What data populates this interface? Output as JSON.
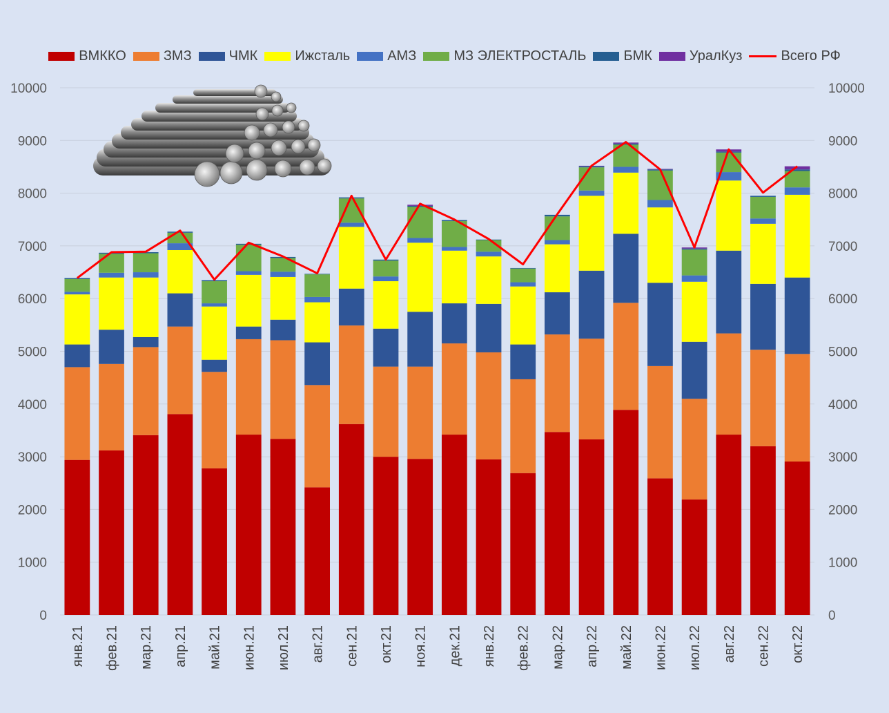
{
  "chart_data": {
    "type": "bar",
    "stacked": true,
    "title": "",
    "xlabel": "",
    "ylabel": "",
    "ylim": [
      0,
      10000
    ],
    "y_ticks": [
      0,
      1000,
      2000,
      3000,
      4000,
      5000,
      6000,
      7000,
      8000,
      9000,
      10000
    ],
    "secondary_axis": "right",
    "grid": true,
    "legend_position": "top",
    "illustration": "steel-bars-image",
    "categories": [
      "янв.21",
      "фев.21",
      "мар.21",
      "апр.21",
      "май.21",
      "июн.21",
      "июл.21",
      "авг.21",
      "сен.21",
      "окт.21",
      "ноя.21",
      "дек.21",
      "янв.22",
      "фев.22",
      "мар.22",
      "апр.22",
      "май.22",
      "июн.22",
      "июл.22",
      "авг.22",
      "сен.22",
      "окт.22"
    ],
    "series": [
      {
        "name": "ВМККО",
        "color": "#c00000",
        "values": [
          2940,
          3120,
          3410,
          3810,
          2780,
          3420,
          3340,
          2420,
          3620,
          3000,
          2960,
          3420,
          2950,
          2690,
          3470,
          3330,
          3890,
          2590,
          2190,
          3420,
          3200,
          2910
        ]
      },
      {
        "name": "ЗМЗ",
        "color": "#ed7d31",
        "values": [
          1760,
          1640,
          1670,
          1660,
          1830,
          1810,
          1870,
          1940,
          1870,
          1710,
          1750,
          1730,
          2030,
          1780,
          1850,
          1910,
          2030,
          2130,
          1910,
          1920,
          1830,
          2040
        ]
      },
      {
        "name": "ЧМК",
        "color": "#2f5597",
        "values": [
          430,
          650,
          190,
          630,
          230,
          240,
          390,
          810,
          700,
          720,
          1040,
          760,
          920,
          660,
          800,
          1290,
          1310,
          1580,
          1080,
          1570,
          1250,
          1450
        ]
      },
      {
        "name": "Ижсталь",
        "color": "#ffff00",
        "values": [
          950,
          990,
          1130,
          820,
          1010,
          980,
          810,
          760,
          1170,
          900,
          1310,
          1000,
          900,
          1100,
          910,
          1420,
          1160,
          1430,
          1140,
          1330,
          1140,
          1570
        ]
      },
      {
        "name": "АМЗ",
        "color": "#4472c4",
        "values": [
          50,
          90,
          100,
          130,
          60,
          70,
          100,
          100,
          80,
          90,
          90,
          70,
          90,
          80,
          80,
          100,
          110,
          140,
          120,
          160,
          100,
          140
        ]
      },
      {
        "name": "МЗ ЭЛЕКТРОСТАЛЬ",
        "color": "#70ad47",
        "values": [
          240,
          360,
          360,
          200,
          420,
          500,
          260,
          430,
          460,
          300,
          590,
          490,
          220,
          260,
          450,
          440,
          420,
          560,
          490,
          370,
          410,
          310
        ]
      },
      {
        "name": "БМК",
        "color": "#255e91",
        "values": [
          20,
          20,
          20,
          20,
          20,
          20,
          20,
          10,
          20,
          20,
          20,
          20,
          10,
          10,
          30,
          20,
          20,
          20,
          20,
          20,
          20,
          30
        ]
      },
      {
        "name": "УралКуз",
        "color": "#7030a0",
        "values": [
          0,
          0,
          0,
          0,
          0,
          0,
          0,
          0,
          0,
          0,
          20,
          0,
          0,
          0,
          0,
          10,
          20,
          10,
          20,
          40,
          0,
          60
        ]
      }
    ],
    "line": {
      "name": "Всего РФ",
      "color": "#ff0000",
      "values": [
        6390,
        6880,
        6890,
        7290,
        6360,
        7060,
        6800,
        6480,
        7950,
        6740,
        7800,
        7500,
        7130,
        6650,
        7600,
        8520,
        8970,
        8450,
        6970,
        8830,
        8010,
        8510
      ]
    }
  }
}
